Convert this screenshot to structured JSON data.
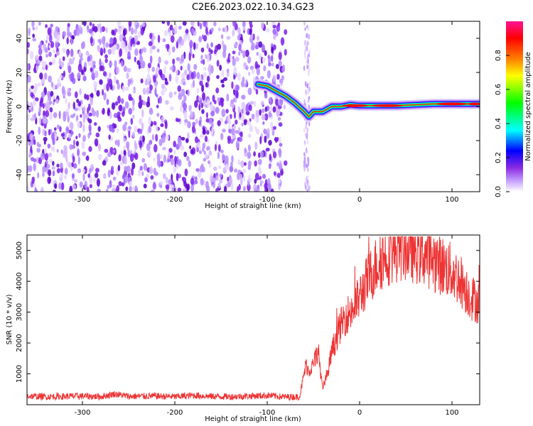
{
  "figure": {
    "title": "C2E6.2023.022.10.34.G23"
  },
  "colorbar": {
    "label": "Normalized spectral amplitude",
    "ticks": [
      "0.0",
      "0.2",
      "0.4",
      "0.6",
      "0.8"
    ],
    "range": [
      0,
      1
    ],
    "colormap": [
      "#ffffff",
      "#c9a6ff",
      "#8a2be2",
      "#0000ff",
      "#00ffff",
      "#00ff00",
      "#ffff00",
      "#ff7f00",
      "#ff0000",
      "#ff1493"
    ]
  },
  "chart_data": [
    {
      "type": "heatmap",
      "title": "",
      "xlabel": "Height of straight line (km)",
      "ylabel": "Frequency (Hz)",
      "xlim": [
        -360,
        130
      ],
      "ylim": [
        -50,
        50
      ],
      "x_ticks": [
        "-300",
        "-200",
        "-100",
        "0",
        "100"
      ],
      "y_ticks": [
        "-40",
        "-20",
        "0",
        "20",
        "40"
      ],
      "noise_region_x": [
        -360,
        -80
      ],
      "signal_ridge": {
        "x": [
          -110,
          -100,
          -90,
          -80,
          -70,
          -60,
          -55,
          -50,
          -40,
          -30,
          -20,
          -10,
          0,
          20,
          40,
          60,
          80,
          100,
          110,
          120,
          130
        ],
        "y": [
          13,
          12,
          9,
          6,
          2,
          -3,
          -6,
          -3,
          -3,
          0,
          0,
          1,
          0.5,
          0.5,
          0.5,
          1,
          1.5,
          1.5,
          1.5,
          1.5,
          1.5
        ]
      }
    },
    {
      "type": "line",
      "title": "",
      "xlabel": "Height of straight line (km)",
      "ylabel": "SNR (10 * v/v)",
      "xlim": [
        -360,
        130
      ],
      "ylim": [
        0,
        5500
      ],
      "x_ticks": [
        "-300",
        "-200",
        "-100",
        "0",
        "100"
      ],
      "y_ticks": [
        "1000",
        "2000",
        "3000",
        "4000",
        "5000"
      ],
      "color": "#ee3333",
      "series": [
        {
          "x": [
            -360,
            -340,
            -320,
            -300,
            -280,
            -265,
            -250,
            -220,
            -200,
            -180,
            -160,
            -140,
            -120,
            -100,
            -80,
            -65,
            -58,
            -55,
            -50,
            -45,
            -40,
            -35,
            -30,
            -25,
            -20,
            -15,
            -10,
            -5,
            0,
            10,
            20,
            30,
            40,
            50,
            60,
            70,
            80,
            90,
            100,
            110,
            120,
            130
          ],
          "y": [
            280,
            260,
            270,
            280,
            260,
            350,
            270,
            280,
            260,
            300,
            270,
            260,
            280,
            300,
            250,
            260,
            1300,
            1100,
            1300,
            1800,
            500,
            1000,
            1700,
            2200,
            2600,
            2900,
            3000,
            3200,
            3500,
            4100,
            4600,
            4900,
            5050,
            5100,
            5000,
            4900,
            4700,
            4500,
            4300,
            4000,
            3500,
            3300
          ]
        }
      ]
    }
  ]
}
